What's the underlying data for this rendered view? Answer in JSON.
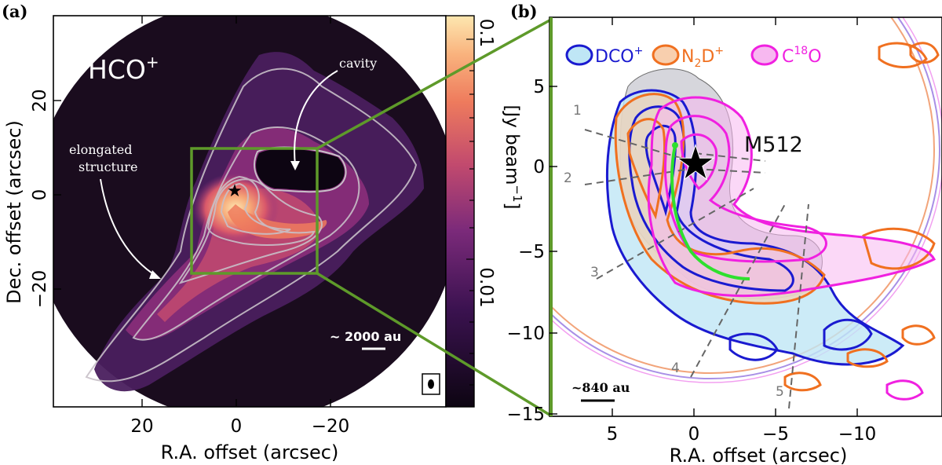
{
  "panel_a": {
    "label": "(a)",
    "molecule": "HCO",
    "molecule_sup": "+",
    "annotation_cavity": "cavity",
    "annotation_elongated_1": "elongated",
    "annotation_elongated_2": "structure",
    "scalebar_label": "~ 2000 au",
    "xlabel": "R.A. offset (arcsec)",
    "ylabel": "Dec. offset (arcsec)",
    "xticks": [
      "20",
      "0",
      "−20"
    ],
    "yticks": [
      "20",
      "0",
      "−20"
    ],
    "colorbar_ticks": [
      "0.1",
      "0.01"
    ],
    "colorbar_label": "[Jy beam",
    "colorbar_label_sup": "−1",
    "colorbar_label_end": "]"
  },
  "panel_b": {
    "label": "(b)",
    "legend": [
      {
        "name": "DCO",
        "sup": "+",
        "color": "#1a1ad0",
        "fill": "#bfe6f5"
      },
      {
        "name": "N",
        "sub": "2",
        "tail": "D",
        "sup": "+",
        "color": "#f07020",
        "fill": "#f8cfae"
      },
      {
        "name": "C",
        "sup": "18",
        "tail": "O",
        "color": "#f020e0",
        "fill": "#f7b8f0"
      }
    ],
    "source_label": "M512",
    "cut_labels": [
      "1",
      "2",
      "3",
      "4",
      "5"
    ],
    "scalebar_label": "~840 au",
    "xlabel": "R.A. offset (arcsec)",
    "xticks": [
      "5",
      "0",
      "−5",
      "−10"
    ],
    "yticks": [
      "5",
      "0",
      "−5",
      "−10",
      "−15"
    ]
  },
  "colors": {
    "frame_green": "#5e9a2a",
    "spine_green": "#2ee02e",
    "background_dark": "#1a0c1e",
    "contour_gray": "#c8c0c8"
  }
}
